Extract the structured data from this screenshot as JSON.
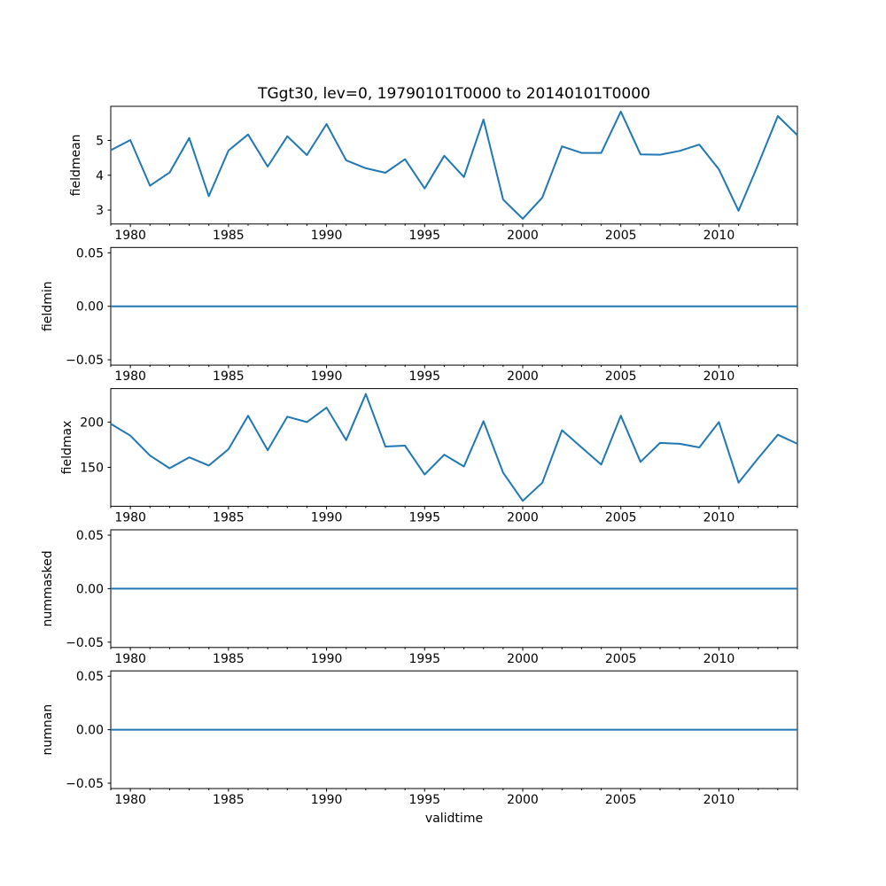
{
  "figure": {
    "title": "TGgt30, lev=0, 19790101T0000 to 20140101T0000",
    "xlabel": "validtime",
    "background": "#ffffff",
    "line_color": "#1f77b4",
    "axis_color": "#000000"
  },
  "axes_shared_x": {
    "xlim": [
      1979,
      2014
    ],
    "xticks": [
      1980,
      1985,
      1990,
      1995,
      2000,
      2005,
      2010
    ],
    "xtick_labels": [
      "1980",
      "1985",
      "1990",
      "1995",
      "2000",
      "2005",
      "2010"
    ],
    "minor_xtick_interval": 1
  },
  "chart_data": [
    {
      "type": "line",
      "ylabel": "fieldmean",
      "x": [
        1979,
        1980,
        1981,
        1982,
        1983,
        1984,
        1985,
        1986,
        1987,
        1988,
        1989,
        1990,
        1991,
        1992,
        1993,
        1994,
        1995,
        1996,
        1997,
        1998,
        1999,
        2000,
        2001,
        2002,
        2003,
        2004,
        2005,
        2006,
        2007,
        2008,
        2009,
        2010,
        2011,
        2012,
        2013,
        2014
      ],
      "values": [
        4.72,
        5.01,
        3.7,
        4.08,
        5.07,
        3.4,
        4.71,
        5.17,
        4.25,
        5.12,
        4.58,
        5.47,
        4.43,
        4.2,
        4.07,
        4.46,
        3.62,
        4.56,
        3.95,
        5.6,
        3.3,
        2.75,
        3.36,
        4.83,
        4.64,
        4.64,
        5.83,
        4.6,
        4.59,
        4.7,
        4.88,
        4.17,
        2.98,
        4.31,
        5.7,
        5.15
      ],
      "ylim": [
        2.6,
        5.98
      ],
      "yticks": [
        3,
        4,
        5
      ],
      "ytick_labels": [
        "3",
        "4",
        "5"
      ],
      "grid": false,
      "legend": "none"
    },
    {
      "type": "line",
      "ylabel": "fieldmin",
      "x": [
        1979,
        1980,
        1981,
        1982,
        1983,
        1984,
        1985,
        1986,
        1987,
        1988,
        1989,
        1990,
        1991,
        1992,
        1993,
        1994,
        1995,
        1996,
        1997,
        1998,
        1999,
        2000,
        2001,
        2002,
        2003,
        2004,
        2005,
        2006,
        2007,
        2008,
        2009,
        2010,
        2011,
        2012,
        2013,
        2014
      ],
      "values": [
        0,
        0,
        0,
        0,
        0,
        0,
        0,
        0,
        0,
        0,
        0,
        0,
        0,
        0,
        0,
        0,
        0,
        0,
        0,
        0,
        0,
        0,
        0,
        0,
        0,
        0,
        0,
        0,
        0,
        0,
        0,
        0,
        0,
        0,
        0,
        0
      ],
      "ylim": [
        -0.055,
        0.055
      ],
      "yticks": [
        -0.05,
        0.0,
        0.05
      ],
      "ytick_labels": [
        "−0.05",
        "0.00",
        "0.05"
      ],
      "grid": false,
      "legend": "none"
    },
    {
      "type": "line",
      "ylabel": "fieldmax",
      "x": [
        1979,
        1980,
        1981,
        1982,
        1983,
        1984,
        1985,
        1986,
        1987,
        1988,
        1989,
        1990,
        1991,
        1992,
        1993,
        1994,
        1995,
        1996,
        1997,
        1998,
        1999,
        2000,
        2001,
        2002,
        2003,
        2004,
        2005,
        2006,
        2007,
        2008,
        2009,
        2010,
        2011,
        2012,
        2013,
        2014
      ],
      "values": [
        198,
        185,
        163,
        149,
        161,
        152,
        170,
        207,
        169,
        206,
        200,
        216,
        180,
        231,
        173,
        174,
        142,
        164,
        151,
        201,
        144,
        113,
        133,
        191,
        172,
        153,
        207,
        156,
        177,
        176,
        172,
        200,
        133,
        160,
        186,
        176
      ],
      "ylim": [
        107,
        237
      ],
      "yticks": [
        150,
        200
      ],
      "ytick_labels": [
        "150",
        "200"
      ],
      "grid": false,
      "legend": "none"
    },
    {
      "type": "line",
      "ylabel": "nummasked",
      "x": [
        1979,
        1980,
        1981,
        1982,
        1983,
        1984,
        1985,
        1986,
        1987,
        1988,
        1989,
        1990,
        1991,
        1992,
        1993,
        1994,
        1995,
        1996,
        1997,
        1998,
        1999,
        2000,
        2001,
        2002,
        2003,
        2004,
        2005,
        2006,
        2007,
        2008,
        2009,
        2010,
        2011,
        2012,
        2013,
        2014
      ],
      "values": [
        0,
        0,
        0,
        0,
        0,
        0,
        0,
        0,
        0,
        0,
        0,
        0,
        0,
        0,
        0,
        0,
        0,
        0,
        0,
        0,
        0,
        0,
        0,
        0,
        0,
        0,
        0,
        0,
        0,
        0,
        0,
        0,
        0,
        0,
        0,
        0
      ],
      "ylim": [
        -0.055,
        0.055
      ],
      "yticks": [
        -0.05,
        0.0,
        0.05
      ],
      "ytick_labels": [
        "−0.05",
        "0.00",
        "0.05"
      ],
      "grid": false,
      "legend": "none"
    },
    {
      "type": "line",
      "ylabel": "numnan",
      "x": [
        1979,
        1980,
        1981,
        1982,
        1983,
        1984,
        1985,
        1986,
        1987,
        1988,
        1989,
        1990,
        1991,
        1992,
        1993,
        1994,
        1995,
        1996,
        1997,
        1998,
        1999,
        2000,
        2001,
        2002,
        2003,
        2004,
        2005,
        2006,
        2007,
        2008,
        2009,
        2010,
        2011,
        2012,
        2013,
        2014
      ],
      "values": [
        0,
        0,
        0,
        0,
        0,
        0,
        0,
        0,
        0,
        0,
        0,
        0,
        0,
        0,
        0,
        0,
        0,
        0,
        0,
        0,
        0,
        0,
        0,
        0,
        0,
        0,
        0,
        0,
        0,
        0,
        0,
        0,
        0,
        0,
        0,
        0
      ],
      "ylim": [
        -0.055,
        0.055
      ],
      "yticks": [
        -0.05,
        0.0,
        0.05
      ],
      "ytick_labels": [
        "−0.05",
        "0.00",
        "0.05"
      ],
      "grid": false,
      "legend": "none"
    }
  ]
}
